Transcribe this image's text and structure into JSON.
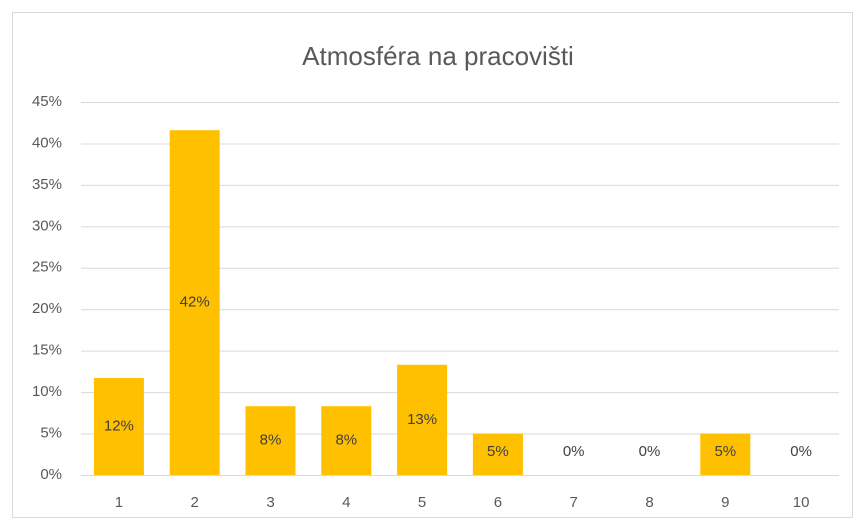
{
  "chart_data": {
    "type": "bar",
    "title": "Atmosféra na pracovišti",
    "categories": [
      "1",
      "2",
      "3",
      "4",
      "5",
      "6",
      "7",
      "8",
      "9",
      "10"
    ],
    "values": [
      11.7,
      41.6,
      8.3,
      8.3,
      13.3,
      5,
      0,
      0,
      5,
      0
    ],
    "value_labels": [
      "12%",
      "42%",
      "8%",
      "8%",
      "13%",
      "5%",
      "0%",
      "0%",
      "5%",
      "0%"
    ],
    "color": "#ffc000",
    "ylim": [
      0,
      45
    ],
    "yticks": [
      {
        "value": 0,
        "label": "0%"
      },
      {
        "value": 5,
        "label": "5%"
      },
      {
        "value": 10,
        "label": "10%"
      },
      {
        "value": 15,
        "label": "15%"
      },
      {
        "value": 20,
        "label": "20%"
      },
      {
        "value": 25,
        "label": "25%"
      },
      {
        "value": 30,
        "label": "30%"
      },
      {
        "value": 35,
        "label": "35%"
      },
      {
        "value": 40,
        "label": "40%"
      },
      {
        "value": 45,
        "label": "45%"
      }
    ],
    "grid": true
  }
}
